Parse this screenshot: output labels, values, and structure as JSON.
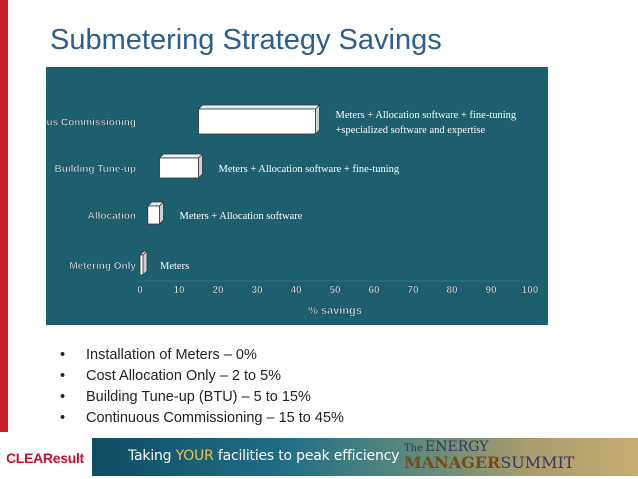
{
  "slide": {
    "title": "Submetering Strategy Savings",
    "bullets": [
      "Installation of Meters – 0%",
      "Cost Allocation Only – 2 to 5%",
      "Building Tune-up (BTU) – 5 to 15%",
      "Continuous Commissioning – 15 to 45%"
    ],
    "bullet_symbol": "•"
  },
  "footer": {
    "logo": "CLEAResult",
    "tagline_prefix": "Taking ",
    "tagline_highlight": "YOUR",
    "tagline_suffix": " facilities to peak efficiency",
    "summit_the": "The",
    "summit_energy": "ENERGY",
    "summit_manager": "MANAGER",
    "summit_word": "SUMMIT"
  },
  "colors": {
    "accent_red": "#cc1f24",
    "title_blue": "#2b5f8f",
    "chart_bg": "#1d5f6f",
    "bar_face": "#ffffff"
  },
  "chart_data": {
    "type": "bar",
    "orientation": "horizontal",
    "bar_style": "3d-floating-range",
    "categories": [
      "Metering Only",
      "Allocation",
      "Building Tune-up",
      "Continuous Commissioning"
    ],
    "ranges": [
      [
        0,
        0
      ],
      [
        2,
        5
      ],
      [
        5,
        15
      ],
      [
        15,
        45
      ]
    ],
    "annotations": [
      "Meters",
      "Meters + Allocation software",
      "Meters + Allocation software + fine-tuning",
      "Meters + Allocation software + fine-tuning +specialized software and expertise"
    ],
    "xticks": [
      "0",
      "10",
      "20",
      "30",
      "40",
      "50",
      "60",
      "70",
      "80",
      "90",
      "100"
    ],
    "xlim": [
      0,
      100
    ],
    "xlabel": "% savings",
    "grid": false,
    "legend": "none"
  }
}
